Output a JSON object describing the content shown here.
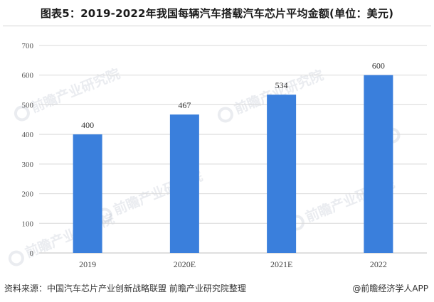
{
  "title": "图表5：2019-2022年我国每辆汽车搭载汽车芯片平均金额(单位：美元)",
  "source": "资料来源：中国汽车芯片产业创新战略联盟 前瞻产业研究院整理",
  "brand": "@前瞻经济学人APP",
  "watermark": "前瞻产业研究院",
  "colors": {
    "bar": "#3a7fdc",
    "grid": "#d9d9d9",
    "axis": "#bfbfbf"
  },
  "chart_data": {
    "type": "bar",
    "categories": [
      "2019",
      "2020E",
      "2021E",
      "2022"
    ],
    "values": [
      400,
      467,
      534,
      600
    ],
    "ylim": [
      0,
      700
    ],
    "yticks": [
      0,
      100,
      200,
      300,
      400,
      500,
      600,
      700
    ],
    "grid": true,
    "legend": "none",
    "xlabel": "",
    "ylabel": ""
  }
}
